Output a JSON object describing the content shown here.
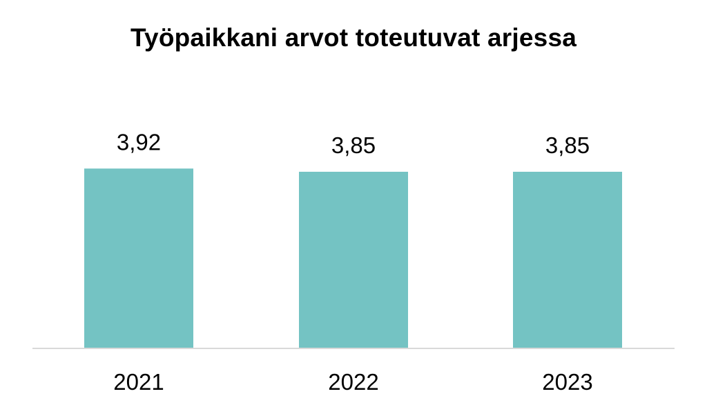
{
  "chart_data": {
    "type": "bar",
    "title": "Työpaikkani arvot toteutuvat arjessa",
    "categories": [
      "2021",
      "2022",
      "2023"
    ],
    "values": [
      3.92,
      3.85,
      3.85
    ],
    "value_labels": [
      "3,92",
      "3,85",
      "3,85"
    ],
    "xlabel": "",
    "ylabel": "",
    "ylim": [
      0,
      6
    ],
    "grid": false,
    "legend": "none",
    "bar_color": "#74c3c3",
    "axis_color": "#d9d9d9"
  }
}
